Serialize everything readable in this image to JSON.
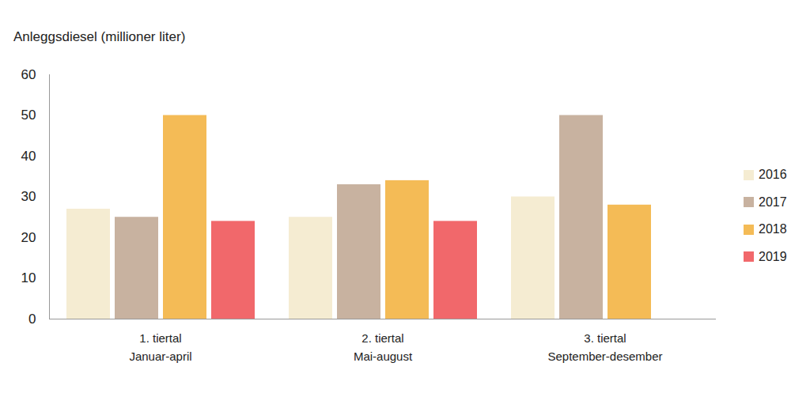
{
  "chart_data": {
    "type": "bar",
    "y_label": "Anleggsdiesel (millioner liter)",
    "categories": [
      "1. tiertal\nJanuar-april",
      "2. tiertal\nMai-august",
      "3. tiertal\nSeptember-desember"
    ],
    "series": [
      {
        "name": "2016",
        "color": "#f5ecd2",
        "values": [
          27,
          25,
          30
        ]
      },
      {
        "name": "2017",
        "color": "#c8b2a0",
        "values": [
          25,
          33,
          50
        ]
      },
      {
        "name": "2018",
        "color": "#f4bb56",
        "values": [
          50,
          34,
          28
        ]
      },
      {
        "name": "2019",
        "color": "#f1686b",
        "values": [
          24,
          24,
          null
        ]
      }
    ],
    "ylim": [
      0,
      60
    ],
    "yticks": [
      0,
      10,
      20,
      30,
      40,
      50,
      60
    ],
    "grid": false,
    "legend": "right"
  }
}
